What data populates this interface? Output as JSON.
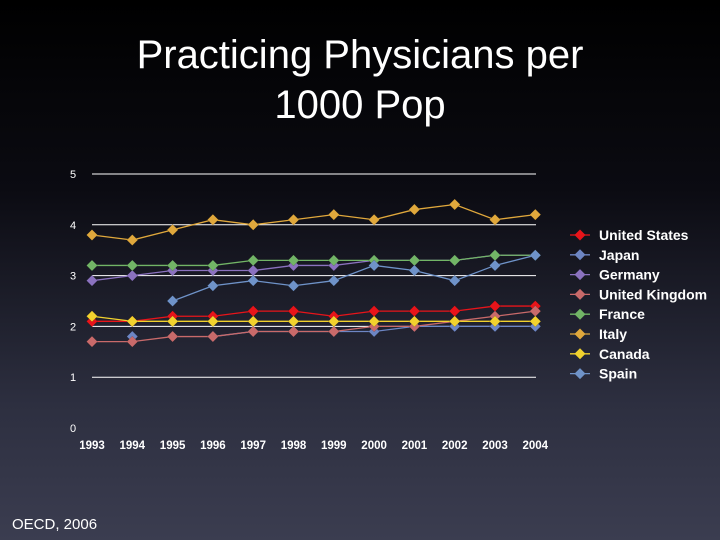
{
  "slide": {
    "title_line1": "Practicing Physicians per",
    "title_line2": "1000 Pop",
    "footer": "OECD, 2006"
  },
  "chart_data": {
    "type": "line",
    "title": "Practicing Physicians per 1000 Pop",
    "xlabel": "",
    "ylabel": "",
    "ylim": [
      0,
      5
    ],
    "yticks": [
      "0",
      "1",
      "2",
      "3",
      "4",
      "5"
    ],
    "categories": [
      "1993",
      "1994",
      "1995",
      "1996",
      "1997",
      "1998",
      "1999",
      "2000",
      "2001",
      "2002",
      "2003",
      "2004"
    ],
    "grid": true,
    "legend_position": "right",
    "series": [
      {
        "name": "United States",
        "color": "#e8141a",
        "values": [
          2.1,
          2.1,
          2.2,
          2.2,
          2.3,
          2.3,
          2.2,
          2.3,
          2.3,
          2.3,
          2.4,
          2.4
        ]
      },
      {
        "name": "Japan",
        "color": "#6d86c4",
        "values": [
          null,
          1.8,
          null,
          1.8,
          1.9,
          1.9,
          1.9,
          1.9,
          2.0,
          2.0,
          2.0,
          2.0
        ]
      },
      {
        "name": "Germany",
        "color": "#8b72bf",
        "values": [
          2.9,
          3.0,
          3.1,
          3.1,
          3.1,
          3.2,
          3.2,
          3.3,
          3.3,
          3.3,
          3.4,
          3.4
        ]
      },
      {
        "name": "United Kingdom",
        "color": "#c96a6a",
        "values": [
          1.7,
          1.7,
          1.8,
          1.8,
          1.9,
          1.9,
          1.9,
          2.0,
          2.0,
          2.1,
          2.2,
          2.3
        ]
      },
      {
        "name": "France",
        "color": "#72b566",
        "values": [
          3.2,
          3.2,
          3.2,
          3.2,
          3.3,
          3.3,
          3.3,
          3.3,
          3.3,
          3.3,
          3.4,
          3.4
        ]
      },
      {
        "name": "Italy",
        "color": "#e0a83c",
        "values": [
          3.8,
          3.7,
          3.9,
          4.1,
          4.0,
          4.1,
          4.2,
          4.1,
          4.3,
          4.4,
          4.1,
          4.2
        ]
      },
      {
        "name": "Canada",
        "color": "#f2d22e",
        "values": [
          2.2,
          2.1,
          2.1,
          2.1,
          2.1,
          2.1,
          2.1,
          2.1,
          2.1,
          2.1,
          2.1,
          2.1
        ]
      },
      {
        "name": "Spain",
        "color": "#6f93c9",
        "values": [
          null,
          null,
          2.5,
          2.8,
          2.9,
          2.8,
          2.9,
          3.2,
          3.1,
          2.9,
          3.2,
          3.4
        ]
      }
    ]
  }
}
